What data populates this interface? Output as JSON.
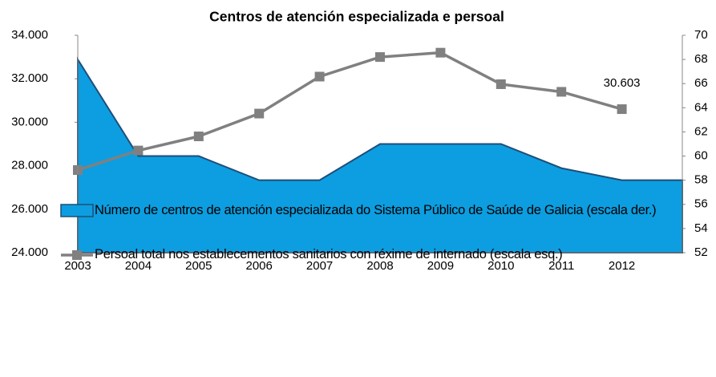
{
  "chart_data": {
    "type": "area",
    "title": "Centros de atención especializada  e persoal",
    "categories": [
      "2003",
      "2004",
      "2005",
      "2006",
      "2007",
      "2008",
      "2009",
      "2010",
      "2011",
      "2012",
      null
    ],
    "series": [
      {
        "name": "Número de centros de atención especializada do Sistema Público de Saúde de Galicia (escala der.)",
        "type": "area",
        "axis": "y2",
        "color": "#0c9ee0",
        "edge": "#1f4e79",
        "values": [
          68,
          60,
          60,
          58,
          58,
          61,
          61,
          61,
          59,
          58,
          58
        ]
      },
      {
        "name": "Persoal total nos establecementos sanitarios con réxime de internado (escala esq.)",
        "type": "line",
        "color": "#808080",
        "values": [
          27800,
          28700,
          29350,
          30400,
          32100,
          33000,
          33200,
          31750,
          31400,
          30603,
          null
        ],
        "value_labels": [
          null,
          null,
          null,
          null,
          null,
          null,
          null,
          null,
          null,
          "30.603",
          null
        ]
      }
    ],
    "ylim": [
      24000,
      34000
    ],
    "yticks": [
      {
        "value": 24000,
        "label": "24.000"
      },
      {
        "value": 26000,
        "label": "26.000"
      },
      {
        "value": 28000,
        "label": "28.000"
      },
      {
        "value": 30000,
        "label": "30.000"
      },
      {
        "value": 32000,
        "label": "32.000"
      },
      {
        "value": 34000,
        "label": "34.000"
      }
    ],
    "y2lim": [
      52,
      70
    ],
    "y2ticks": [
      52,
      54,
      56,
      58,
      60,
      62,
      64,
      66,
      68,
      70
    ]
  }
}
